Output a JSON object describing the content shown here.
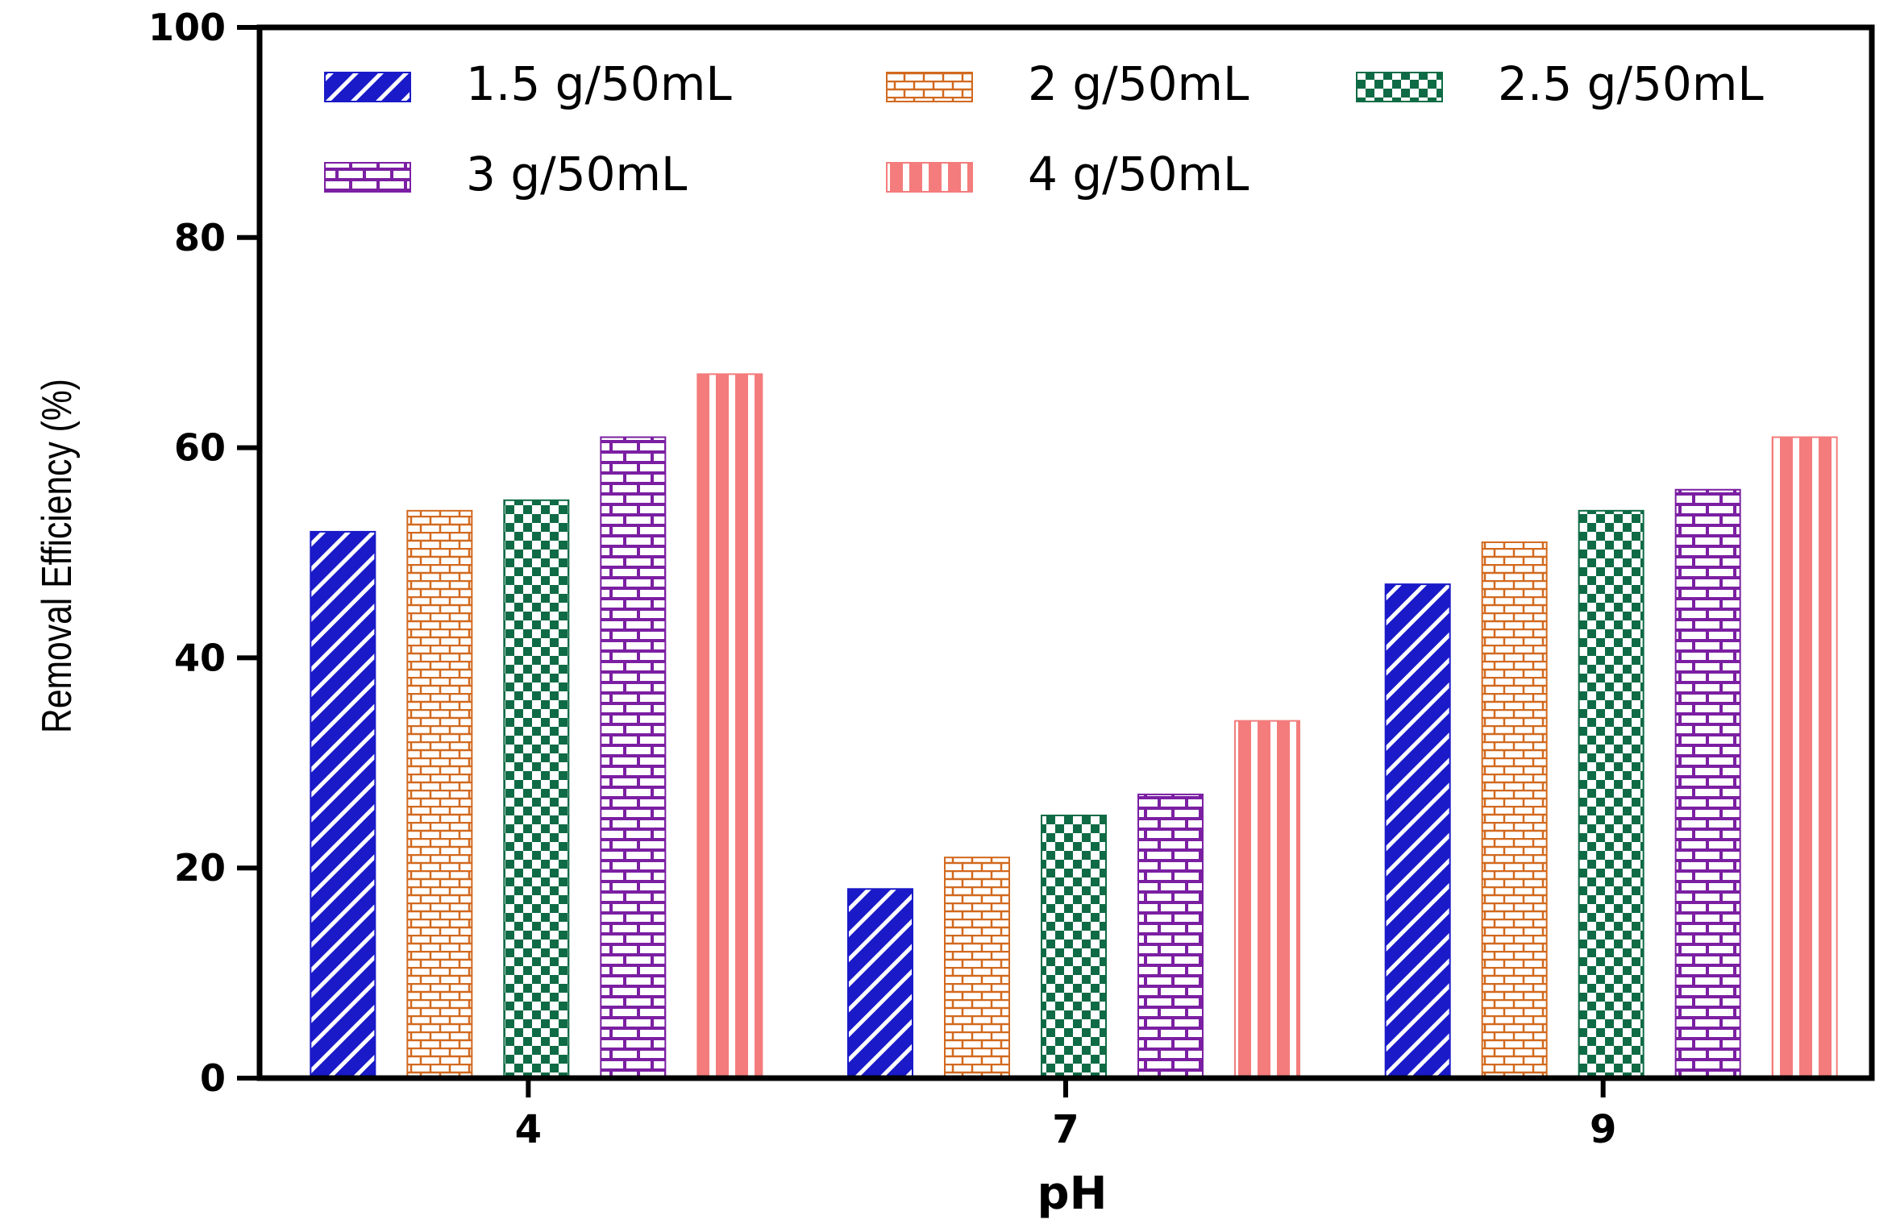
{
  "chart_data": {
    "type": "bar",
    "title": "",
    "xlabel": "pH",
    "ylabel": "Removal Efficiency (%)",
    "ylim": [
      0,
      100
    ],
    "yticks": [
      "0",
      "20",
      "40",
      "60",
      "80",
      "100"
    ],
    "categories": [
      "4",
      "7",
      "9"
    ],
    "legend_position": "top",
    "series": [
      {
        "name": "1.5 g/50mL",
        "values": [
          52,
          18,
          47
        ],
        "color": "#1a1ac8",
        "pattern": "diagonal"
      },
      {
        "name": "2 g/50mL",
        "values": [
          54,
          21,
          51
        ],
        "color": "#d2691e",
        "pattern": "brick-light"
      },
      {
        "name": "2.5 g/50mL",
        "values": [
          55,
          25,
          54
        ],
        "color": "#0f6b45",
        "pattern": "checker"
      },
      {
        "name": "3 g/50mL",
        "values": [
          61,
          27,
          56
        ],
        "color": "#7b1fa2",
        "pattern": "brick"
      },
      {
        "name": "4 g/50mL",
        "values": [
          67,
          34,
          61
        ],
        "color": "#f47c7c",
        "pattern": "vstripe"
      }
    ]
  }
}
